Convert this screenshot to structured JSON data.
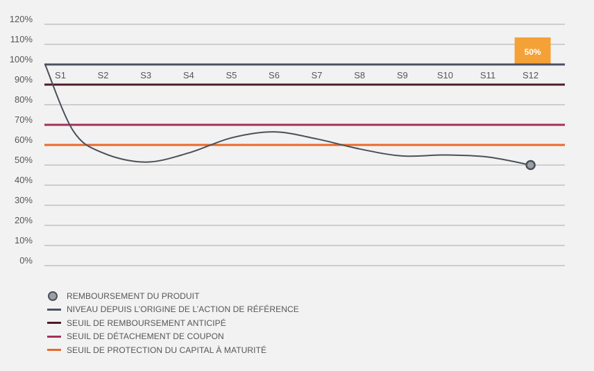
{
  "chart_data": {
    "type": "line",
    "y_ticks": [
      "0%",
      "10%",
      "20%",
      "30%",
      "40%",
      "50%",
      "60%",
      "70%",
      "80%",
      "90%",
      "100%",
      "110%",
      "120%"
    ],
    "ylim": [
      0,
      120
    ],
    "categories": [
      "S1",
      "S2",
      "S3",
      "S4",
      "S5",
      "S6",
      "S7",
      "S8",
      "S9",
      "S10",
      "S11",
      "S12"
    ],
    "grid": true,
    "series": [
      {
        "name": "NIVEAU DEPUIS L'ORIGINE DE L'ACTION DE RÉFÉRENCE",
        "color": "#4a5057",
        "x": [
          0,
          0.3,
          1,
          2,
          3,
          4,
          5,
          6,
          7,
          8,
          9,
          10,
          11
        ],
        "values": [
          100,
          67,
          56,
          51.5,
          56,
          63.5,
          66.5,
          63,
          58,
          54.5,
          55,
          54,
          50
        ]
      }
    ],
    "reference_lines": [
      {
        "name": "NIVEAU DEPUIS L'ORIGINE DE L'ACTION DE RÉFÉRENCE",
        "value": 100,
        "color": "#4a5260"
      },
      {
        "name": "SEUIL DE REMBOURSEMENT ANTICIPÉ",
        "value": 90,
        "color": "#4e1a26"
      },
      {
        "name": "SEUIL DE DÉTACHEMENT DE COUPON",
        "value": 70,
        "color": "#a3305a"
      },
      {
        "name": "SEUIL DE PROTECTION DU CAPITAL À MATURITÉ",
        "value": 60,
        "color": "#e8692a"
      }
    ],
    "end_point": {
      "label": "REMBOURSEMENT DU PRODUIT",
      "category": "S12",
      "value": 50
    },
    "callout": {
      "text": "50%",
      "category": "S12",
      "color": "#f4a137"
    }
  },
  "legend": [
    {
      "label": "REMBOURSEMENT DU PRODUIT",
      "symbol": "dot",
      "color": "#4a5057"
    },
    {
      "label": "NIVEAU DEPUIS L’ORIGINE DE L’ACTION DE RÉFÉRENCE",
      "symbol": "line",
      "color": "#4a5260"
    },
    {
      "label": "SEUIL DE REMBOURSEMENT ANTICIPÉ",
      "symbol": "line",
      "color": "#4e1a26"
    },
    {
      "label": "SEUIL DE DÉTACHEMENT DE COUPON",
      "symbol": "line",
      "color": "#a3305a"
    },
    {
      "label": "SEUIL DE PROTECTION DU CAPITAL À MATURITÉ",
      "symbol": "line",
      "color": "#e8692a"
    }
  ]
}
